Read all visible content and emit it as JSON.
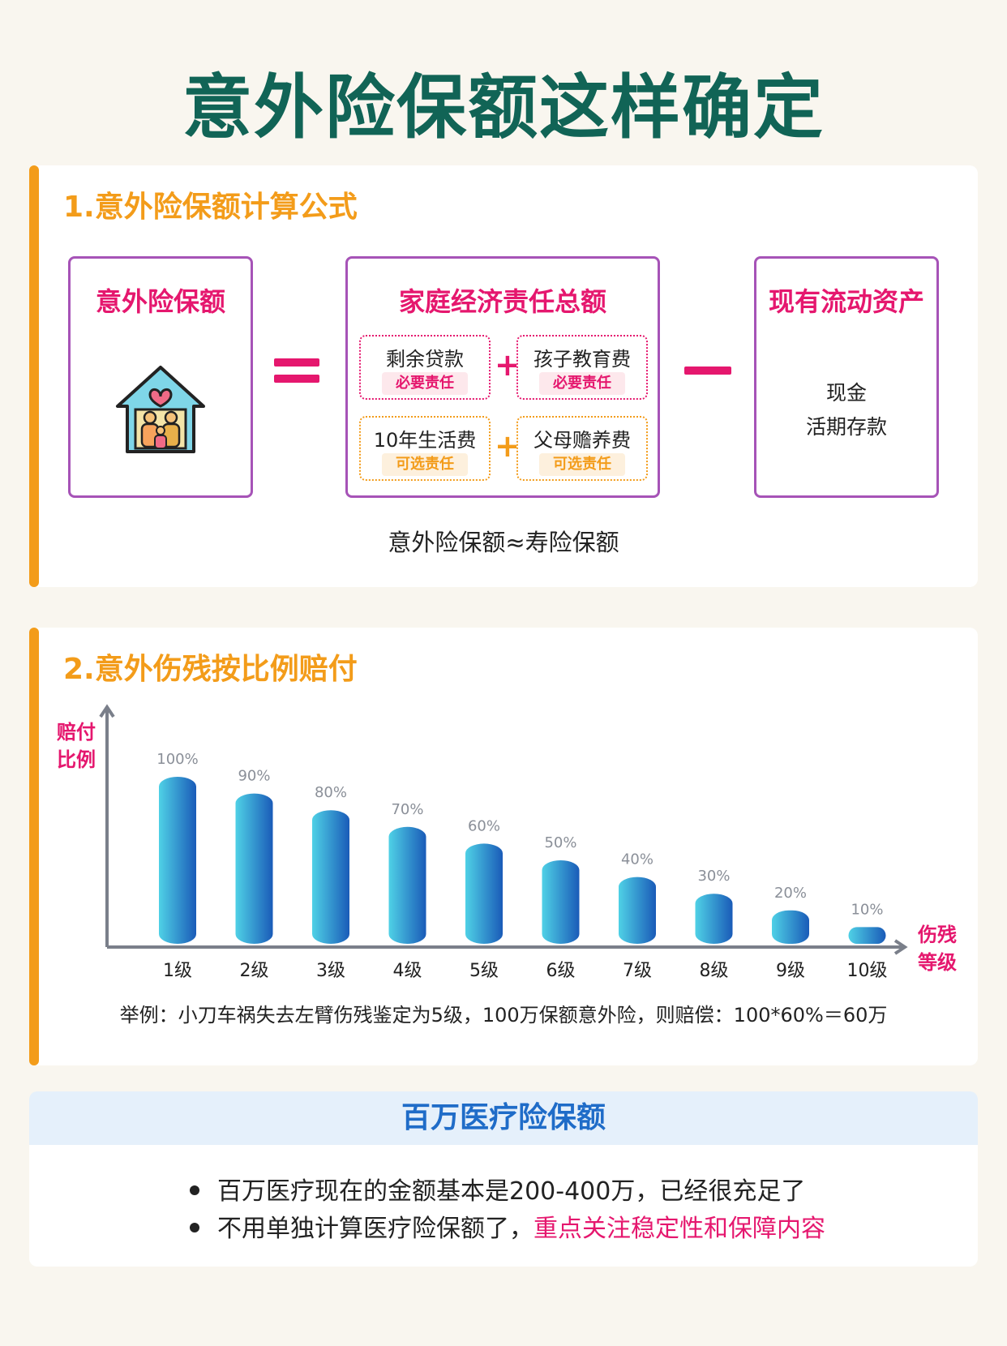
{
  "page_title": "意外险保额这样确定",
  "section1": {
    "title": "1.意外险保额计算公式",
    "left_box": {
      "title": "意外险保额",
      "icon": "family-house-icon"
    },
    "middle_box": {
      "title": "家庭经济责任总额",
      "items": [
        {
          "label": "剩余贷款",
          "tag": "必要责任",
          "kind": "required"
        },
        {
          "label": "孩子教育费",
          "tag": "必要责任",
          "kind": "required"
        },
        {
          "label": "10年生活费",
          "tag": "可选责任",
          "kind": "optional"
        },
        {
          "label": "父母赡养费",
          "tag": "可选责任",
          "kind": "optional"
        }
      ],
      "plus_symbol": "+"
    },
    "right_box": {
      "title": "现有流动资产",
      "lines": [
        "现金",
        "活期存款"
      ]
    },
    "note": "意外险保额≈寿险保额"
  },
  "section2": {
    "title": "2.意外伤残按比例赔付",
    "y_label_lines": [
      "赔付",
      "比例"
    ],
    "x_label_lines": [
      "伤残",
      "等级"
    ],
    "example": "举例：小刀车祸失去左臂伤残鉴定为5级，100万保额意外险，则赔偿：100*60%＝60万"
  },
  "chart_data": {
    "type": "bar",
    "categories": [
      "1级",
      "2级",
      "3级",
      "4级",
      "5级",
      "6级",
      "7级",
      "8级",
      "9级",
      "10级"
    ],
    "values": [
      100,
      90,
      80,
      70,
      60,
      50,
      40,
      30,
      20,
      10
    ],
    "value_labels": [
      "100%",
      "90%",
      "80%",
      "70%",
      "60%",
      "50%",
      "40%",
      "30%",
      "20%",
      "10%"
    ],
    "xlabel": "伤残等级",
    "ylabel": "赔付比例",
    "ylim": [
      0,
      100
    ],
    "grid": false,
    "bar_gradient": [
      "#4fd1e6",
      "#1a5bb8"
    ]
  },
  "section3": {
    "title": "百万医疗险保额",
    "bullets": [
      {
        "text": "百万医疗现在的金额基本是200-400万，已经很充足了",
        "highlight": ""
      },
      {
        "text": "不用单独计算医疗险保额了，",
        "highlight": "重点关注稳定性和保障内容"
      }
    ]
  },
  "colors": {
    "title_green": "#116456",
    "accent_orange": "#f39c1a",
    "accent_pink": "#e5176e",
    "box_purple": "#a653b7",
    "medical_blue": "#1f6cc8"
  }
}
